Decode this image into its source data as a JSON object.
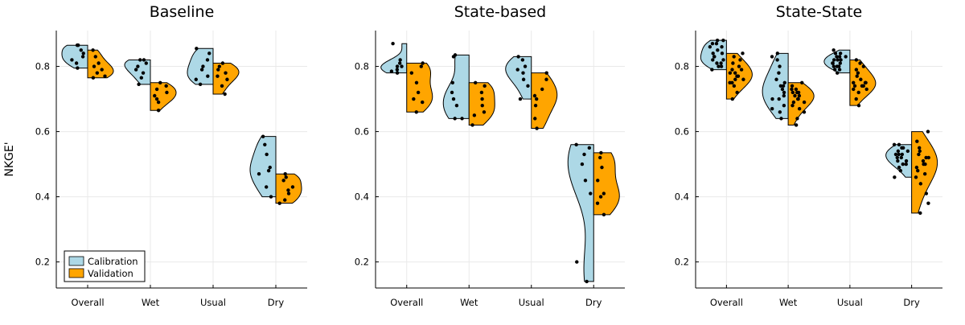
{
  "colors": {
    "calibration": "#add8e6",
    "validation": "#ffa500",
    "points": "#000000"
  },
  "chart_data": [
    {
      "type": "violin",
      "title": "Baseline",
      "ylabel": "NKGE'",
      "categories": [
        "Overall",
        "Wet",
        "Usual",
        "Dry"
      ],
      "ylim": [
        0.12,
        0.91
      ],
      "yticks": [
        "0.2",
        "0.4",
        "0.6",
        "0.8"
      ],
      "grid": true,
      "legend": {
        "position": "bottom-left",
        "entries": [
          "Calibration",
          "Validation"
        ]
      },
      "series": [
        {
          "name": "Calibration",
          "side": "left",
          "values": [
            [
              0.795,
              0.81,
              0.83,
              0.85,
              0.865,
              0.865,
              0.84,
              0.82
            ],
            [
              0.745,
              0.765,
              0.78,
              0.79,
              0.8,
              0.81,
              0.82,
              0.82
            ],
            [
              0.745,
              0.77,
              0.79,
              0.8,
              0.82,
              0.84,
              0.855,
              0.76
            ],
            [
              0.4,
              0.43,
              0.47,
              0.49,
              0.53,
              0.56,
              0.585,
              0.48
            ]
          ]
        },
        {
          "name": "Validation",
          "side": "right",
          "values": [
            [
              0.765,
              0.77,
              0.78,
              0.8,
              0.81,
              0.83,
              0.85,
              0.79
            ],
            [
              0.665,
              0.69,
              0.71,
              0.72,
              0.73,
              0.74,
              0.75,
              0.7
            ],
            [
              0.715,
              0.74,
              0.76,
              0.78,
              0.79,
              0.8,
              0.81,
              0.77
            ],
            [
              0.38,
              0.39,
              0.41,
              0.42,
              0.43,
              0.45,
              0.47,
              0.46
            ]
          ]
        }
      ]
    },
    {
      "type": "violin",
      "title": "State-based",
      "ylabel": "",
      "categories": [
        "Overall",
        "Wet",
        "Usual",
        "Dry"
      ],
      "ylim": [
        0.12,
        0.91
      ],
      "yticks": [
        "0.2",
        "0.4",
        "0.6",
        "0.8"
      ],
      "grid": true,
      "series": [
        {
          "name": "Calibration",
          "side": "left",
          "values": [
            [
              0.78,
              0.785,
              0.79,
              0.8,
              0.81,
              0.82,
              0.87,
              0.8
            ],
            [
              0.64,
              0.64,
              0.7,
              0.72,
              0.75,
              0.83,
              0.835,
              0.68
            ],
            [
              0.7,
              0.74,
              0.76,
              0.78,
              0.8,
              0.82,
              0.83,
              0.79
            ],
            [
              0.14,
              0.2,
              0.41,
              0.45,
              0.5,
              0.53,
              0.55,
              0.56
            ]
          ]
        },
        {
          "name": "Validation",
          "side": "right",
          "values": [
            [
              0.66,
              0.69,
              0.72,
              0.75,
              0.78,
              0.8,
              0.81,
              0.7
            ],
            [
              0.62,
              0.65,
              0.68,
              0.7,
              0.72,
              0.74,
              0.75,
              0.66
            ],
            [
              0.61,
              0.64,
              0.68,
              0.71,
              0.73,
              0.76,
              0.78,
              0.7
            ],
            [
              0.345,
              0.38,
              0.4,
              0.41,
              0.45,
              0.49,
              0.52,
              0.535
            ]
          ]
        }
      ]
    },
    {
      "type": "violin",
      "title": "State-State",
      "ylabel": "",
      "categories": [
        "Overall",
        "Wet",
        "Usual",
        "Dry"
      ],
      "ylim": [
        0.12,
        0.91
      ],
      "yticks": [
        "0.2",
        "0.4",
        "0.6",
        "0.8"
      ],
      "grid": true,
      "series": [
        {
          "name": "Calibration",
          "side": "left",
          "values": [
            [
              0.79,
              0.8,
              0.81,
              0.82,
              0.83,
              0.84,
              0.85,
              0.86,
              0.87,
              0.88,
              0.88,
              0.87,
              0.81,
              0.82,
              0.8,
              0.86,
              0.84,
              0.83
            ],
            [
              0.64,
              0.66,
              0.68,
              0.7,
              0.71,
              0.72,
              0.73,
              0.74,
              0.75,
              0.76,
              0.78,
              0.8,
              0.82,
              0.83,
              0.84,
              0.7,
              0.74,
              0.67
            ],
            [
              0.78,
              0.79,
              0.8,
              0.8,
              0.81,
              0.81,
              0.82,
              0.82,
              0.83,
              0.83,
              0.84,
              0.85,
              0.8,
              0.81,
              0.82,
              0.79,
              0.84,
              0.83
            ],
            [
              0.46,
              0.48,
              0.49,
              0.5,
              0.51,
              0.52,
              0.52,
              0.53,
              0.53,
              0.54,
              0.54,
              0.55,
              0.55,
              0.56,
              0.56,
              0.51,
              0.53,
              0.5
            ]
          ]
        },
        {
          "name": "Validation",
          "side": "right",
          "values": [
            [
              0.7,
              0.72,
              0.74,
              0.75,
              0.76,
              0.77,
              0.78,
              0.78,
              0.79,
              0.8,
              0.81,
              0.82,
              0.83,
              0.84,
              0.77,
              0.76,
              0.79,
              0.75
            ],
            [
              0.62,
              0.64,
              0.66,
              0.67,
              0.68,
              0.69,
              0.7,
              0.71,
              0.72,
              0.72,
              0.73,
              0.73,
              0.74,
              0.75,
              0.7,
              0.71,
              0.69,
              0.72
            ],
            [
              0.68,
              0.7,
              0.72,
              0.73,
              0.74,
              0.74,
              0.75,
              0.75,
              0.76,
              0.77,
              0.78,
              0.79,
              0.8,
              0.81,
              0.82,
              0.74,
              0.75,
              0.73
            ],
            [
              0.35,
              0.38,
              0.41,
              0.44,
              0.46,
              0.48,
              0.49,
              0.5,
              0.51,
              0.52,
              0.53,
              0.54,
              0.55,
              0.57,
              0.6,
              0.5,
              0.52,
              0.47
            ]
          ]
        }
      ]
    }
  ]
}
